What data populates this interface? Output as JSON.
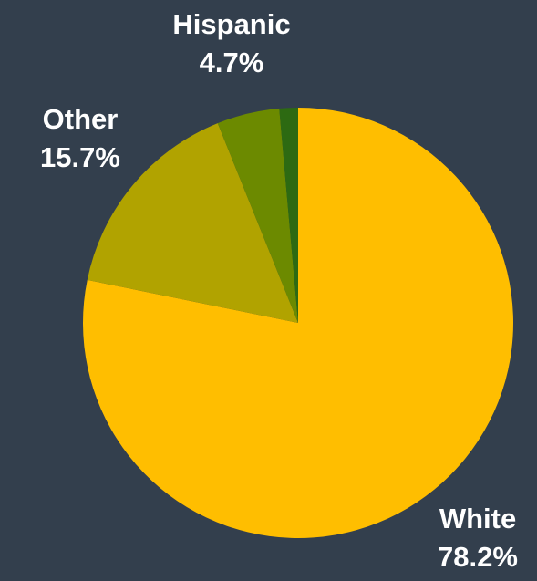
{
  "chart_data": {
    "type": "pie",
    "title": "",
    "start_angle_deg": 0,
    "direction": "clockwise",
    "slices": [
      {
        "name": "White",
        "label": "White",
        "value": 78.2,
        "value_label": "78.2%",
        "color": "#ffbe00"
      },
      {
        "name": "Other",
        "label": "Other",
        "value": 15.7,
        "value_label": "15.7%",
        "color": "#b1a300"
      },
      {
        "name": "Hispanic",
        "label": "Hispanic",
        "value": 4.7,
        "value_label": "4.7%",
        "color": "#6c8a00"
      },
      {
        "name": "Small",
        "label": "",
        "value": 1.4,
        "value_label": "",
        "color": "#2d6a12"
      }
    ],
    "background_color": "#333f4d",
    "label_color": "#ffffff"
  }
}
